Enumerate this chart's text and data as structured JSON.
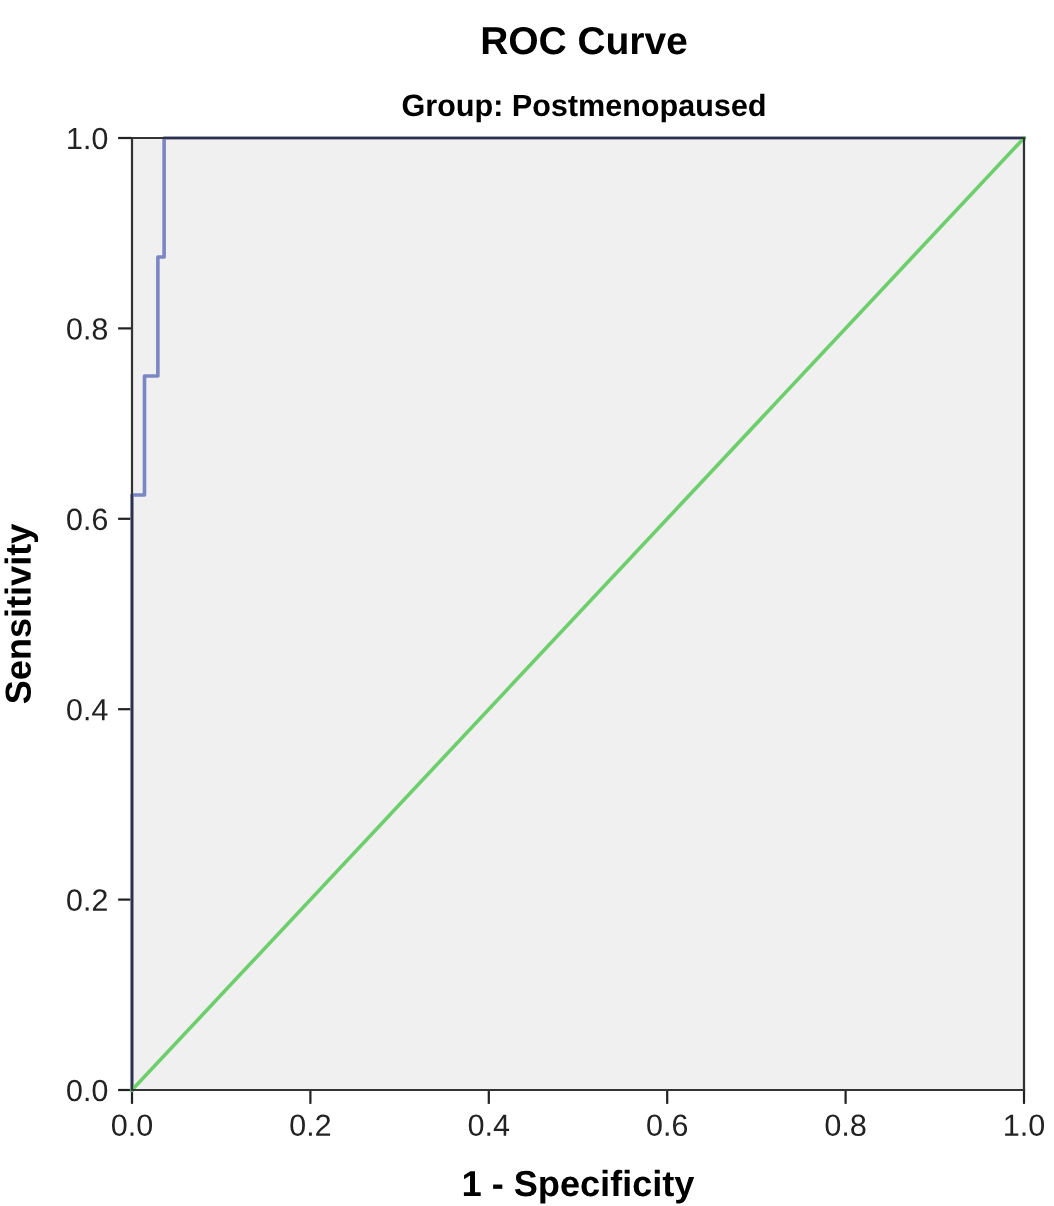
{
  "chart_data": {
    "type": "line",
    "title": "ROC Curve",
    "subtitle": "Group: Postmenopaused",
    "xlabel": "1 - Specificity",
    "ylabel": "Sensitivity",
    "series": [
      {
        "color": "#7b86c4",
        "x": [
          0,
          0,
          0.014,
          0.014,
          0.029,
          0.029,
          0.036,
          0.036,
          1
        ],
        "values": [
          0,
          0.625,
          0.625,
          0.75,
          0.75,
          0.875,
          0.875,
          1.0,
          1.0
        ]
      },
      {
        "color": "#6ccf6c",
        "x": [
          0,
          1
        ],
        "values": [
          0,
          1
        ]
      }
    ],
    "xlim": [
      0,
      1
    ],
    "ylim": [
      0,
      1
    ],
    "xticks": [
      {
        "value": 0,
        "label": "0.0"
      },
      0.2,
      0.4,
      0.6,
      0.8,
      {
        "value": 1,
        "label": "1.0"
      }
    ],
    "yticks": [
      {
        "value": 0,
        "label": "0.0"
      },
      0.2,
      0.4,
      0.6,
      0.8,
      {
        "value": 1,
        "label": "1.0"
      }
    ],
    "grid": false,
    "legend": false,
    "marker": "none",
    "line_style": "solid"
  }
}
